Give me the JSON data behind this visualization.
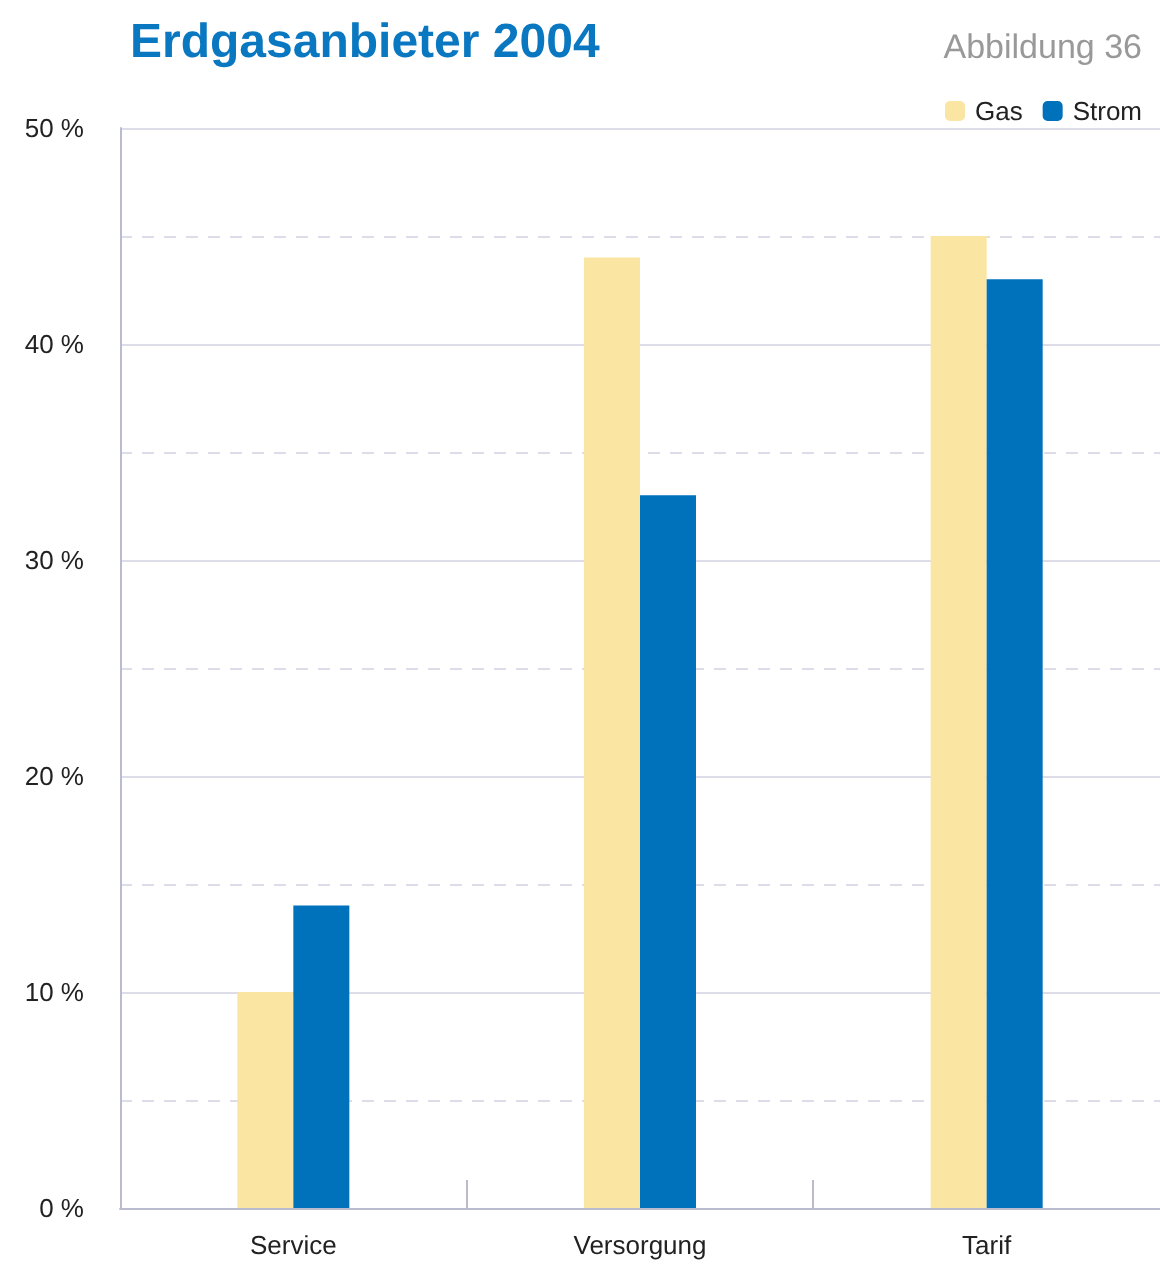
{
  "chart_data": {
    "type": "bar",
    "title": "Erdgasanbieter 2004",
    "subtitle": "Abbildung 36",
    "categories": [
      "Service",
      "Versorgung",
      "Tarif"
    ],
    "series": [
      {
        "name": "Gas",
        "color": "#fbe5a2",
        "values": [
          10,
          44,
          45
        ]
      },
      {
        "name": "Strom",
        "color": "#0072bc",
        "values": [
          14,
          33,
          43
        ]
      }
    ],
    "ylim": [
      0,
      50
    ],
    "yticks": [
      {
        "value": 0,
        "label": "0 %"
      },
      {
        "value": 10,
        "label": "10 %"
      },
      {
        "value": 20,
        "label": "20 %"
      },
      {
        "value": 30,
        "label": "30 %"
      },
      {
        "value": 40,
        "label": "40 %"
      },
      {
        "value": 50,
        "label": "50 %"
      }
    ],
    "grid": true,
    "legend": "top right"
  }
}
